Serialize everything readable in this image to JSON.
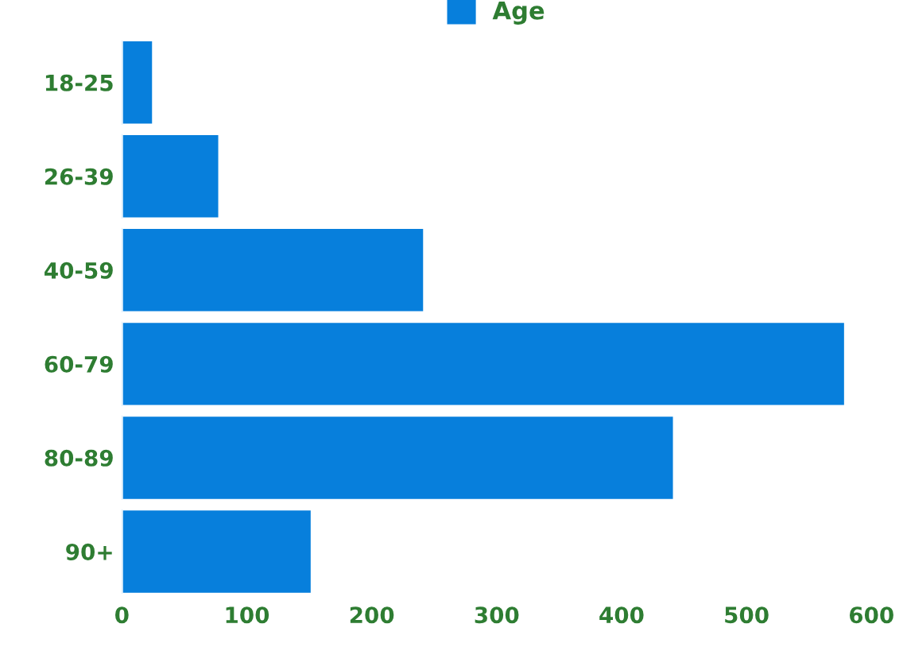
{
  "chart_data": {
    "type": "bar",
    "orientation": "horizontal",
    "categories": [
      "18-25",
      "26-39",
      "40-59",
      "60-79",
      "80-89",
      "90+"
    ],
    "series": [
      {
        "name": "Age",
        "color": "#077fdc",
        "values": [
          25,
          78,
          242,
          579,
          442,
          152
        ]
      }
    ],
    "xlim": [
      0,
      600
    ],
    "xticks": [
      0,
      100,
      200,
      300,
      400,
      500,
      600
    ],
    "legend": "top",
    "grid": false
  }
}
